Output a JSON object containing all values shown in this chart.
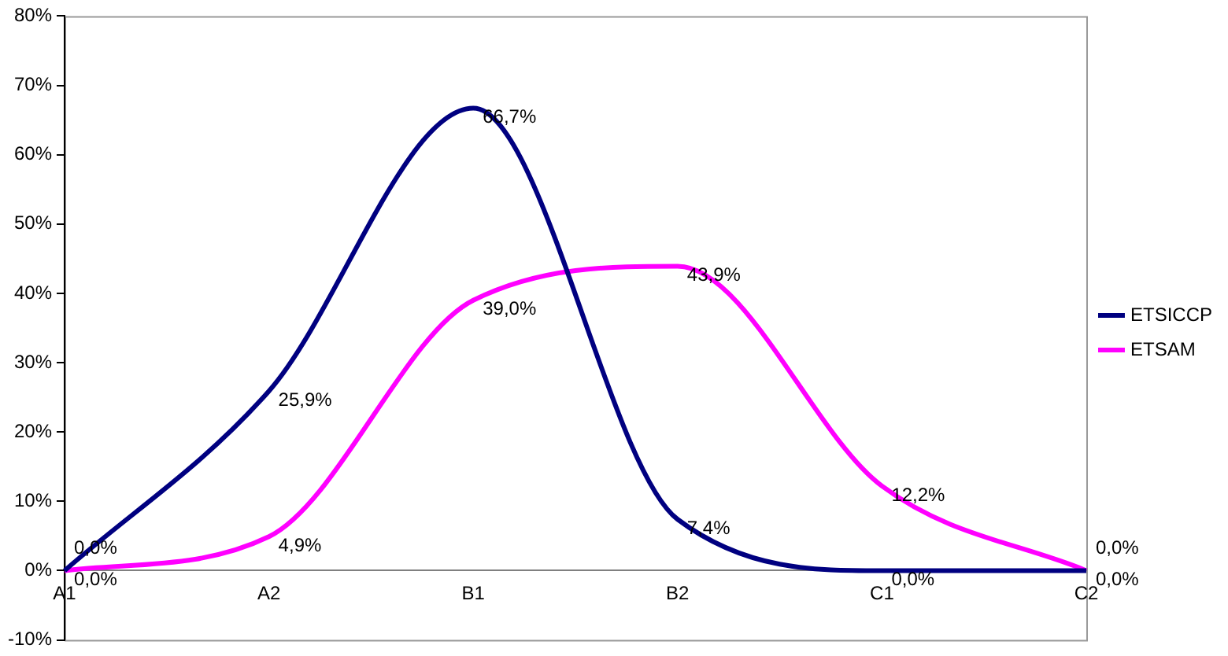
{
  "chart_data": {
    "type": "line",
    "categories": [
      "A1",
      "A2",
      "B1",
      "B2",
      "C1",
      "C2"
    ],
    "series": [
      {
        "name": "ETSICCP",
        "color": "#000080",
        "values": [
          0,
          25.9,
          66.7,
          7.4,
          0,
          0
        ],
        "value_labels": [
          "0,0%",
          "25,9%",
          "66,7%",
          "7,4%",
          "0,0%",
          "0,0%"
        ]
      },
      {
        "name": "ETSAM",
        "color": "#ff00ff",
        "values": [
          0,
          4.9,
          39,
          43.9,
          12.2,
          0
        ],
        "value_labels": [
          "0,0%",
          "4,9%",
          "39,0%",
          "43,9%",
          "12,2%",
          "0,0%"
        ]
      }
    ],
    "ylim": [
      -10,
      80
    ],
    "yticks": [
      {
        "value": -10,
        "label": "-10%"
      },
      {
        "value": 0,
        "label": "0%"
      },
      {
        "value": 10,
        "label": "10%"
      },
      {
        "value": 20,
        "label": "20%"
      },
      {
        "value": 30,
        "label": "30%"
      },
      {
        "value": 40,
        "label": "40%"
      },
      {
        "value": 50,
        "label": "50%"
      },
      {
        "value": 60,
        "label": "60%"
      },
      {
        "value": 70,
        "label": "70%"
      },
      {
        "value": 80,
        "label": "80%"
      }
    ],
    "grid": false,
    "legend": "right",
    "marker": "none",
    "line_style": "solid"
  }
}
